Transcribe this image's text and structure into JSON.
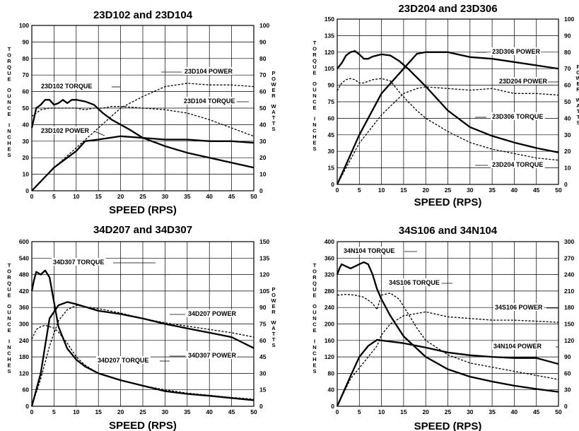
{
  "chart_data": [
    {
      "type": "line",
      "title": "23D102 and 23D104",
      "xlabel": "SPEED (RPS)",
      "ylabel": "TORQUE OUNCE INCHES",
      "y2label": "POWER WATTS",
      "xlim": [
        0,
        50
      ],
      "ylim": [
        0,
        100
      ],
      "y2lim": [
        0,
        100
      ],
      "grid": true,
      "x_ticks": [
        "0",
        "5",
        "10",
        "15",
        "20",
        "25",
        "30",
        "35",
        "40",
        "45",
        "50"
      ],
      "y_ticks": [
        "0",
        "10",
        "20",
        "30",
        "40",
        "50",
        "60",
        "70",
        "80",
        "90",
        "100"
      ],
      "y2_ticks": [
        "0",
        "10",
        "20",
        "30",
        "40",
        "50",
        "60",
        "70",
        "80",
        "90",
        "100"
      ],
      "series": [
        {
          "name": "23D102 TORQUE",
          "axis": "left",
          "style": "solid-thick",
          "x": [
            0,
            1,
            2,
            3,
            4,
            5,
            6,
            7,
            8,
            9,
            10,
            12,
            14,
            16,
            18,
            20,
            22,
            25,
            30,
            35,
            40,
            45,
            50
          ],
          "values": [
            38,
            50,
            52,
            55,
            55,
            52,
            53,
            55,
            53,
            55,
            55,
            54,
            52,
            47,
            43,
            40,
            37,
            32,
            27,
            23,
            20,
            17,
            14
          ]
        },
        {
          "name": "23D104 TORQUE",
          "axis": "left",
          "style": "dashed",
          "x": [
            0,
            1,
            2,
            4,
            6,
            8,
            10,
            12,
            14,
            16,
            18,
            20,
            25,
            30,
            35,
            40,
            45,
            50
          ],
          "values": [
            45,
            47,
            49,
            50,
            50,
            50,
            50,
            49,
            50,
            50,
            51,
            51,
            50,
            49,
            47,
            43,
            38,
            33
          ]
        },
        {
          "name": "23D102 POWER",
          "axis": "right",
          "style": "solid-thick",
          "x": [
            0,
            5,
            10,
            12,
            15,
            20,
            25,
            30,
            35,
            40,
            45,
            50
          ],
          "values": [
            0,
            14,
            24,
            30,
            31,
            33,
            32,
            31,
            31,
            30,
            30,
            29
          ]
        },
        {
          "name": "23D104 POWER",
          "axis": "right",
          "style": "dashed",
          "x": [
            0,
            5,
            10,
            15,
            20,
            25,
            30,
            35,
            40,
            45,
            50
          ],
          "values": [
            0,
            14,
            26,
            38,
            50,
            57,
            63,
            65,
            64,
            64,
            63
          ]
        }
      ],
      "annotations": [
        "23D104 POWER",
        "23D102 TORQUE",
        "23D104 TORQUE",
        "23D102 POWER"
      ]
    },
    {
      "type": "line",
      "title": "23D204 and 23D306",
      "xlabel": "SPEED (RPS)",
      "ylabel": "TORQUE OUNCE INCHES",
      "y2label": "POWER WATTS",
      "xlim": [
        0,
        50
      ],
      "ylim": [
        0,
        150
      ],
      "y2lim": [
        0,
        100
      ],
      "grid": true,
      "x_ticks": [
        "0",
        "5",
        "10",
        "15",
        "20",
        "25",
        "30",
        "35",
        "40",
        "45",
        "50"
      ],
      "y_ticks": [
        "0",
        "15",
        "30",
        "45",
        "60",
        "75",
        "90",
        "105",
        "120",
        "135",
        "150"
      ],
      "y2_ticks": [
        "0",
        "10",
        "20",
        "30",
        "40",
        "50",
        "60",
        "70",
        "80",
        "90",
        "100"
      ],
      "series": [
        {
          "name": "23D306 TORQUE",
          "axis": "left",
          "style": "solid-thick",
          "x": [
            0,
            1,
            2,
            3,
            4,
            5,
            6,
            7,
            8,
            10,
            12,
            14,
            16,
            18,
            20,
            25,
            30,
            35,
            40,
            45,
            50
          ],
          "values": [
            105,
            110,
            117,
            120,
            121,
            118,
            114,
            114,
            116,
            118,
            117,
            112,
            105,
            97,
            89,
            67,
            52,
            44,
            38,
            33,
            29
          ]
        },
        {
          "name": "23D204 TORQUE",
          "axis": "left",
          "style": "dashed",
          "x": [
            0,
            1,
            2,
            3,
            4,
            5,
            6,
            8,
            10,
            12,
            14,
            16,
            18,
            20,
            25,
            30,
            35,
            40,
            45,
            50
          ],
          "values": [
            85,
            92,
            95,
            96,
            95,
            92,
            92,
            95,
            96,
            94,
            84,
            75,
            67,
            60,
            48,
            38,
            32,
            28,
            24,
            22
          ]
        },
        {
          "name": "23D306 POWER",
          "axis": "right",
          "style": "solid-thick",
          "x": [
            0,
            5,
            10,
            15,
            18,
            20,
            25,
            30,
            35,
            40,
            45,
            50
          ],
          "values": [
            0,
            30,
            55,
            70,
            79,
            80,
            80,
            77,
            76,
            74,
            72,
            70
          ]
        },
        {
          "name": "23D204 POWER",
          "axis": "right",
          "style": "dashed",
          "x": [
            0,
            5,
            10,
            15,
            18,
            20,
            25,
            30,
            35,
            40,
            45,
            50
          ],
          "values": [
            0,
            25,
            42,
            55,
            58,
            59,
            58,
            57,
            58,
            55,
            55,
            54
          ]
        }
      ],
      "annotations": [
        "23D306 POWER",
        "23D204 POWER",
        "23D306 TORQUE",
        "23D204 TORQUE"
      ]
    },
    {
      "type": "line",
      "title": "34D207 and 34D307",
      "xlabel": "SPEED (RPS)",
      "ylabel": "TORQUE OUNCE INCHES",
      "y2label": "POWER WATTS",
      "xlim": [
        0,
        50
      ],
      "ylim": [
        0,
        600
      ],
      "y2lim": [
        0,
        150
      ],
      "grid": true,
      "x_ticks": [
        "0",
        "5",
        "10",
        "15",
        "20",
        "25",
        "30",
        "35",
        "40",
        "45",
        "50"
      ],
      "y_ticks": [
        "0",
        "60",
        "120",
        "180",
        "240",
        "300",
        "360",
        "420",
        "480",
        "540",
        "600"
      ],
      "y2_ticks": [
        "0",
        "15",
        "30",
        "45",
        "60",
        "75",
        "90",
        "105",
        "120",
        "135",
        "150"
      ],
      "series": [
        {
          "name": "34D307 TORQUE",
          "axis": "left",
          "style": "solid-thick",
          "x": [
            0,
            0.5,
            1,
            2,
            3,
            4,
            5,
            6,
            8,
            10,
            12,
            15,
            20,
            25,
            30,
            35,
            40,
            45,
            50
          ],
          "values": [
            420,
            460,
            490,
            480,
            495,
            470,
            380,
            290,
            210,
            170,
            145,
            120,
            95,
            75,
            55,
            45,
            38,
            30,
            22
          ]
        },
        {
          "name": "34D207 TORQUE",
          "axis": "left",
          "style": "dashed",
          "x": [
            0,
            1,
            2,
            3,
            4,
            5,
            6,
            7,
            8,
            10,
            12,
            15,
            20,
            25,
            30,
            35,
            40,
            45,
            50
          ],
          "values": [
            245,
            280,
            290,
            295,
            290,
            285,
            270,
            250,
            230,
            180,
            150,
            120,
            95,
            75,
            60,
            48,
            40,
            32,
            26
          ]
        },
        {
          "name": "34D307 POWER",
          "axis": "right",
          "style": "solid-thick",
          "x": [
            0,
            2,
            3,
            4,
            6,
            8,
            10,
            15,
            20,
            25,
            30,
            35,
            40,
            45,
            50
          ],
          "values": [
            0,
            30,
            55,
            80,
            92,
            95,
            93,
            87,
            84,
            80,
            75,
            71,
            67,
            63,
            53
          ]
        },
        {
          "name": "34D207 POWER",
          "axis": "right",
          "style": "dashed",
          "x": [
            0,
            2,
            4,
            6,
            8,
            10,
            15,
            20,
            25,
            30,
            35,
            40,
            45,
            50
          ],
          "values": [
            0,
            25,
            55,
            78,
            88,
            92,
            89,
            85,
            80,
            76,
            73,
            70,
            67,
            63
          ]
        }
      ],
      "annotations": [
        "34D307 TORQUE",
        "34D207 POWER",
        "34D207 TORQUE",
        "34D307 POWER"
      ]
    },
    {
      "type": "line",
      "title": "34S106 and 34N104",
      "xlabel": "SPEED (RPS)",
      "ylabel": "TORQUE OUNCE INCHES",
      "y2label": "",
      "xlim": [
        0,
        50
      ],
      "ylim": [
        0,
        400
      ],
      "y2lim": [
        0,
        300
      ],
      "grid": true,
      "x_ticks": [
        "0",
        "5",
        "10",
        "15",
        "20",
        "25",
        "30",
        "35",
        "40",
        "45",
        "50"
      ],
      "y_ticks": [
        "0",
        "40",
        "80",
        "120",
        "160",
        "200",
        "240",
        "280",
        "320",
        "360",
        "400"
      ],
      "y2_ticks": [
        "0",
        "30",
        "60",
        "90",
        "120",
        "150",
        "180",
        "210",
        "240",
        "270",
        "300"
      ],
      "series": [
        {
          "name": "34N104 TORQUE",
          "axis": "left",
          "style": "solid-thick",
          "x": [
            0,
            0.5,
            1,
            2,
            3,
            4,
            5,
            6,
            7,
            8,
            9,
            10,
            12,
            15,
            20,
            25,
            30,
            35,
            40,
            45,
            50
          ],
          "values": [
            320,
            335,
            345,
            340,
            335,
            340,
            345,
            350,
            345,
            320,
            285,
            260,
            220,
            170,
            120,
            90,
            72,
            60,
            50,
            42,
            35
          ]
        },
        {
          "name": "34S106 TORQUE",
          "axis": "left",
          "style": "dashed",
          "x": [
            0,
            2,
            4,
            6,
            8,
            9,
            10,
            12,
            14,
            16,
            18,
            20,
            25,
            30,
            35,
            40,
            45,
            50
          ],
          "values": [
            270,
            272,
            270,
            265,
            250,
            235,
            270,
            275,
            260,
            225,
            190,
            160,
            125,
            105,
            95,
            85,
            75,
            65
          ]
        },
        {
          "name": "34N104 POWER",
          "axis": "right",
          "style": "solid-thick",
          "x": [
            0,
            3,
            5,
            7,
            9,
            10,
            15,
            20,
            25,
            30,
            35,
            40,
            45,
            50
          ],
          "values": [
            0,
            55,
            90,
            110,
            121,
            120,
            115,
            107,
            98,
            93,
            90,
            88,
            88,
            77
          ]
        },
        {
          "name": "34S106 POWER",
          "axis": "right",
          "style": "dashed",
          "x": [
            0,
            3,
            6,
            9,
            10,
            12,
            15,
            20,
            25,
            30,
            35,
            40,
            45,
            50
          ],
          "values": [
            0,
            50,
            80,
            110,
            130,
            150,
            165,
            172,
            163,
            160,
            157,
            157,
            155,
            153
          ]
        }
      ],
      "annotations": [
        "34N104 TORQUE",
        "34S106 TORQUE",
        "34S106 POWER",
        "34N104 POWER"
      ]
    }
  ]
}
